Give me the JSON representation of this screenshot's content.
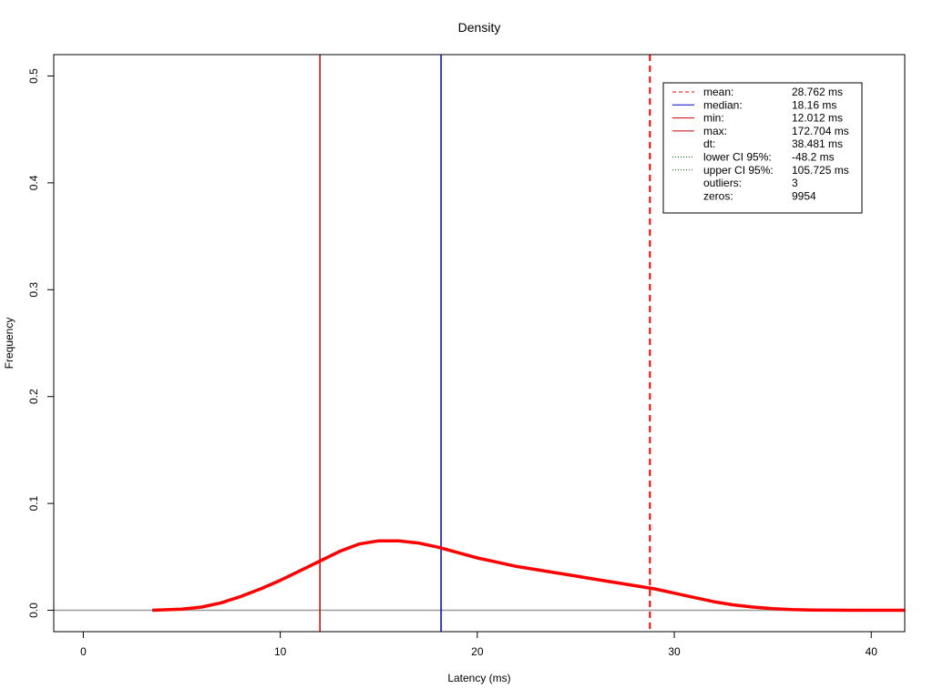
{
  "chart_data": {
    "type": "line",
    "title": "Density",
    "xlabel": "Latency (ms)",
    "ylabel": "Frequency",
    "xlim": [
      -1.5,
      41.7
    ],
    "ylim": [
      -0.02,
      0.52
    ],
    "x_ticks": [
      0,
      10,
      20,
      30,
      40
    ],
    "x_tick_labels": [
      "0",
      "10",
      "20",
      "30",
      "40"
    ],
    "y_ticks": [
      0.0,
      0.1,
      0.2,
      0.3,
      0.4,
      0.5
    ],
    "y_tick_labels": [
      "0.0",
      "0.1",
      "0.2",
      "0.3",
      "0.4",
      "0.5"
    ],
    "grid": false,
    "legend_position": "top-right",
    "baseline": 0,
    "series": [
      {
        "color": "#ff0000",
        "x": [
          3.5,
          5,
          6,
          7,
          8,
          9,
          10,
          11,
          12,
          13,
          14,
          15,
          16,
          17,
          18,
          19,
          20,
          21,
          22,
          23,
          24,
          25,
          26,
          27,
          28,
          29,
          30,
          31,
          32,
          33,
          34,
          35,
          36,
          37,
          38,
          39,
          40,
          41.7
        ],
        "y": [
          0.0,
          0.001,
          0.003,
          0.007,
          0.013,
          0.02,
          0.028,
          0.037,
          0.046,
          0.055,
          0.062,
          0.065,
          0.065,
          0.063,
          0.059,
          0.054,
          0.049,
          0.045,
          0.041,
          0.038,
          0.035,
          0.032,
          0.029,
          0.026,
          0.023,
          0.02,
          0.016,
          0.012,
          0.008,
          0.005,
          0.003,
          0.0015,
          0.0006,
          0.0002,
          0.0001,
          0.0,
          0.0,
          0.0
        ]
      }
    ],
    "vlines": [
      {
        "key": "mean",
        "x": 28.762,
        "color": "#ff0000",
        "dash": "dashed"
      },
      {
        "key": "median",
        "x": 18.16,
        "color": "#0000cd",
        "dash": "solid"
      },
      {
        "key": "min",
        "x": 12.012,
        "color": "#cd0000",
        "dash": "solid"
      },
      {
        "key": "max",
        "x": 172.704,
        "color": "#cd0000",
        "dash": "solid"
      }
    ],
    "legend": [
      {
        "label": "mean:",
        "value": "28.762 ms",
        "line": "dashed",
        "color": "#ff0000"
      },
      {
        "label": "median:",
        "value": "18.16 ms",
        "line": "solid",
        "color": "#0000cd"
      },
      {
        "label": "min:",
        "value": "12.012 ms",
        "line": "solid",
        "color": "#cd0000"
      },
      {
        "label": "max:",
        "value": "172.704 ms",
        "line": "solid",
        "color": "#cd0000"
      },
      {
        "label": "dt:",
        "value": "38.481 ms",
        "line": "none",
        "color": ""
      },
      {
        "label": "lower CI 95%:",
        "value": "-48.2 ms",
        "line": "dotted",
        "color": "#006400"
      },
      {
        "label": "upper CI 95%:",
        "value": "105.725 ms",
        "line": "dotted",
        "color": "#006400"
      },
      {
        "label": "outliers:",
        "value": "3",
        "line": "none",
        "color": ""
      },
      {
        "label": "zeros:",
        "value": "9954",
        "line": "none",
        "color": ""
      }
    ]
  }
}
